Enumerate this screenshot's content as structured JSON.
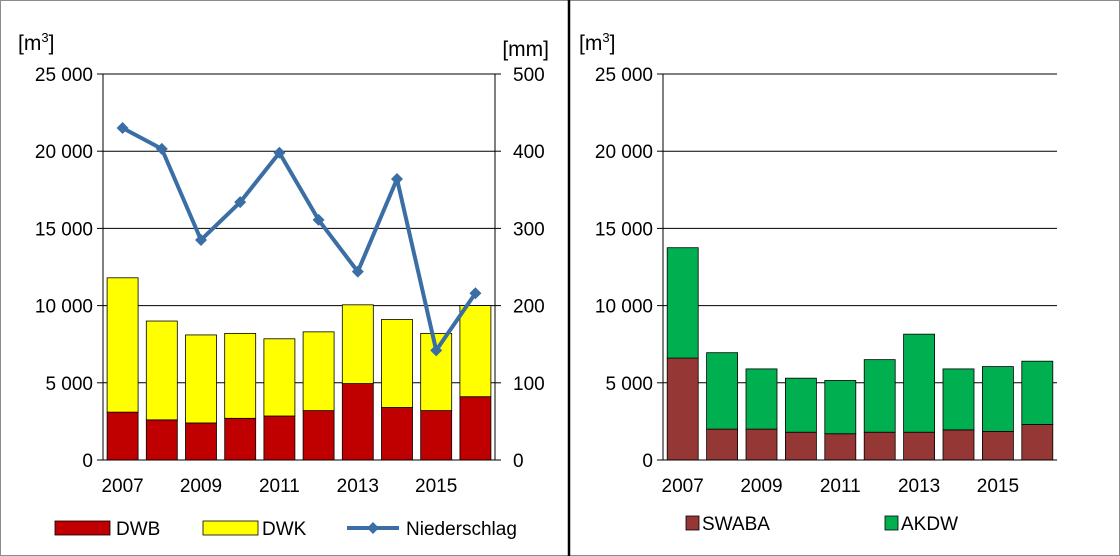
{
  "chart_data": [
    {
      "type": "bar",
      "stacked": true,
      "categories": [
        "2007",
        "2008",
        "2009",
        "2010",
        "2011",
        "2012",
        "2013",
        "2014",
        "2015",
        "2016"
      ],
      "x_tick_labels": [
        "2007",
        "2009",
        "2011",
        "2013",
        "2015"
      ],
      "y_unit_label": "[m3]",
      "y2_unit_label": "[mm]",
      "ylim": [
        0,
        25000
      ],
      "y_ticks": [
        "0",
        "5 000",
        "10 000",
        "15 000",
        "20 000",
        "25 000"
      ],
      "y2lim": [
        0,
        500
      ],
      "y2_ticks": [
        "0",
        "100",
        "200",
        "300",
        "400",
        "500"
      ],
      "grid": true,
      "series": [
        {
          "name": "DWB",
          "color": "#c00000",
          "values": [
            3100,
            2600,
            2400,
            2700,
            2850,
            3200,
            4950,
            3400,
            3200,
            4100
          ]
        },
        {
          "name": "DWK",
          "color": "#ffff00",
          "values": [
            8700,
            6400,
            5700,
            5500,
            5000,
            5100,
            5100,
            5700,
            5000,
            5900
          ]
        }
      ],
      "line_series": {
        "name": "Niederschlag",
        "color": "#3a6ea5",
        "axis": "right",
        "values": [
          430,
          403,
          285,
          334,
          398,
          311,
          244,
          364,
          142,
          216
        ]
      },
      "legend": {
        "position": "bottom",
        "items": [
          "DWB",
          "DWK",
          "Niederschlag"
        ]
      }
    },
    {
      "type": "bar",
      "stacked": true,
      "categories": [
        "2007",
        "2008",
        "2009",
        "2010",
        "2011",
        "2012",
        "2013",
        "2014",
        "2015",
        "2016"
      ],
      "x_tick_labels": [
        "2007",
        "2009",
        "2011",
        "2013",
        "2015"
      ],
      "y_unit_label": "[m3]",
      "ylim": [
        0,
        25000
      ],
      "y_ticks": [
        "0",
        "5 000",
        "10 000",
        "15 000",
        "20 000",
        "25 000"
      ],
      "grid": true,
      "series": [
        {
          "name": "SWABA",
          "color": "#953735",
          "values": [
            6600,
            2000,
            2000,
            1800,
            1700,
            1800,
            1800,
            1950,
            1850,
            2300
          ]
        },
        {
          "name": "AKDW",
          "color": "#00b050",
          "values": [
            7150,
            4950,
            3900,
            3500,
            3450,
            4700,
            6350,
            3950,
            4200,
            4100
          ]
        }
      ],
      "legend": {
        "position": "bottom",
        "items": [
          "SWABA",
          "AKDW"
        ]
      }
    }
  ]
}
